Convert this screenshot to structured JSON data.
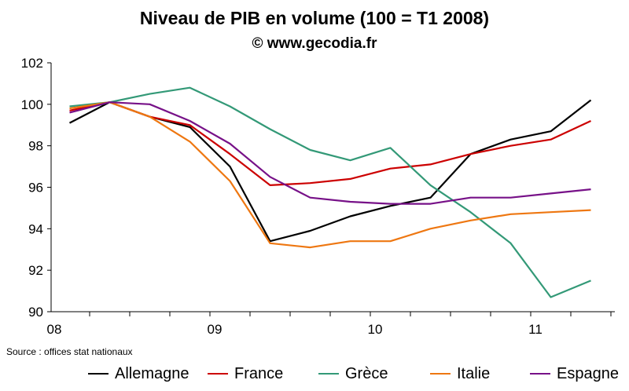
{
  "chart_data": {
    "type": "line",
    "title": "Niveau de PIB en volume (100 = T1 2008)",
    "subtitle": "© www.gecodia.fr",
    "source": "Source : offices stat nationaux",
    "x": [
      "T1 2008",
      "T2 2008",
      "T3 2008",
      "T4 2008",
      "T1 2009",
      "T2 2009",
      "T3 2009",
      "T4 2009",
      "T1 2010",
      "T2 2010",
      "T3 2010",
      "T4 2010",
      "T1 2011",
      "T2 2011"
    ],
    "xtick_labels": [
      "08",
      "09",
      "10",
      "11"
    ],
    "ylim": [
      90,
      102
    ],
    "yticks": [
      90,
      92,
      94,
      96,
      98,
      100,
      102
    ],
    "grid": false,
    "legend_position": "bottom",
    "series": [
      {
        "name": "Allemagne",
        "color": "#000000",
        "values": [
          99.1,
          100.1,
          99.4,
          98.9,
          97.0,
          93.4,
          93.9,
          94.6,
          95.1,
          95.5,
          97.6,
          98.3,
          98.7,
          100.2
        ]
      },
      {
        "name": "France",
        "color": "#cc0000",
        "values": [
          99.7,
          100.1,
          99.4,
          99.0,
          97.6,
          96.1,
          96.2,
          96.4,
          96.9,
          97.1,
          97.6,
          98.0,
          98.3,
          99.2
        ]
      },
      {
        "name": "Grèce",
        "color": "#339977",
        "values": [
          99.9,
          100.1,
          100.5,
          100.8,
          99.9,
          98.8,
          97.8,
          97.3,
          97.9,
          96.1,
          94.8,
          93.3,
          90.7,
          91.5
        ]
      },
      {
        "name": "Italie",
        "color": "#ee7711",
        "values": [
          99.8,
          100.1,
          99.4,
          98.2,
          96.3,
          93.3,
          93.1,
          93.4,
          93.4,
          94.0,
          94.4,
          94.7,
          94.8,
          94.9
        ]
      },
      {
        "name": "Espagne",
        "color": "#771188",
        "values": [
          99.6,
          100.1,
          100.0,
          99.2,
          98.1,
          96.5,
          95.5,
          95.3,
          95.2,
          95.2,
          95.5,
          95.5,
          95.7,
          95.9
        ]
      }
    ]
  }
}
